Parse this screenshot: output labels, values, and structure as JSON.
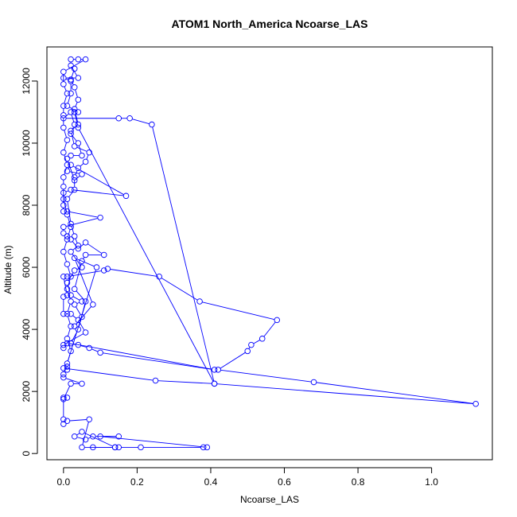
{
  "chart_data": {
    "type": "line",
    "title": "ATOM1 North_America Ncoarse_LAS",
    "xlabel": "Ncoarse_LAS",
    "ylabel": "Altitude (m)",
    "xlim": [
      -0.045,
      1.165
    ],
    "ylim": [
      -200,
      13100
    ],
    "xticks": [
      0.0,
      0.2,
      0.4,
      0.6,
      0.8,
      1.0
    ],
    "xtick_labels": [
      "0.0",
      "0.2",
      "0.4",
      "0.6",
      "0.8",
      "1.0"
    ],
    "yticks": [
      0,
      2000,
      4000,
      6000,
      8000,
      10000,
      12000
    ],
    "ytick_labels": [
      "0",
      "2000",
      "4000",
      "6000",
      "8000",
      "10000",
      "12000"
    ],
    "grid": false,
    "marker": "open-circle",
    "series": [
      {
        "color": "#0000ff",
        "points": [
          [
            0.08,
            200
          ],
          [
            0.14,
            200
          ],
          [
            0.15,
            200
          ],
          [
            0.21,
            200
          ],
          [
            0.38,
            200
          ],
          [
            0.39,
            200
          ],
          [
            0.1,
            550
          ],
          [
            0.15,
            550
          ],
          [
            0.08,
            550
          ],
          [
            0.06,
            450
          ],
          [
            0.03,
            550
          ],
          [
            0.05,
            700
          ],
          [
            0.14,
            200
          ],
          [
            0.05,
            200
          ],
          [
            0.07,
            1100
          ],
          [
            0.01,
            1050
          ],
          [
            0.0,
            950
          ],
          [
            0.0,
            1100
          ],
          [
            0.0,
            1800
          ],
          [
            0.01,
            1800
          ],
          [
            0.0,
            1750
          ],
          [
            0.02,
            2250
          ],
          [
            0.05,
            2250
          ],
          [
            0.0,
            2450
          ],
          [
            0.0,
            2550
          ],
          [
            0.01,
            2700
          ],
          [
            0.01,
            2800
          ],
          [
            0.0,
            2750
          ],
          [
            0.25,
            2350
          ],
          [
            0.41,
            2250
          ],
          [
            1.12,
            1600
          ],
          [
            0.68,
            2300
          ],
          [
            0.42,
            2700
          ],
          [
            0.5,
            3300
          ],
          [
            0.51,
            3500
          ],
          [
            0.54,
            3700
          ],
          [
            0.58,
            4300
          ],
          [
            0.37,
            4900
          ],
          [
            0.26,
            5700
          ],
          [
            0.12,
            5950
          ],
          [
            0.11,
            5900
          ],
          [
            0.01,
            5700
          ],
          [
            0.0,
            5700
          ],
          [
            0.01,
            5100
          ],
          [
            0.0,
            5050
          ],
          [
            0.0,
            4500
          ],
          [
            0.02,
            4500
          ],
          [
            0.04,
            4300
          ],
          [
            0.06,
            3900
          ],
          [
            0.0,
            3500
          ],
          [
            0.0,
            3400
          ],
          [
            0.01,
            3550
          ],
          [
            0.04,
            3500
          ],
          [
            0.07,
            3400
          ],
          [
            0.1,
            3250
          ],
          [
            0.41,
            2700
          ],
          [
            0.02,
            3550
          ],
          [
            0.04,
            4000
          ],
          [
            0.06,
            4900
          ],
          [
            0.03,
            5300
          ],
          [
            0.05,
            6200
          ],
          [
            0.06,
            6400
          ],
          [
            0.11,
            6400
          ],
          [
            0.06,
            6800
          ],
          [
            0.04,
            6600
          ],
          [
            0.02,
            6900
          ],
          [
            0.01,
            7000
          ],
          [
            0.0,
            7100
          ],
          [
            0.0,
            7300
          ],
          [
            0.1,
            7600
          ],
          [
            0.01,
            7800
          ],
          [
            0.0,
            7800
          ],
          [
            0.0,
            8000
          ],
          [
            0.0,
            8400
          ],
          [
            0.02,
            8500
          ],
          [
            0.17,
            8300
          ],
          [
            0.02,
            9300
          ],
          [
            0.01,
            9100
          ],
          [
            0.05,
            9000
          ],
          [
            0.03,
            8800
          ],
          [
            0.01,
            9500
          ],
          [
            0.02,
            9600
          ],
          [
            0.05,
            9600
          ],
          [
            0.04,
            10000
          ],
          [
            0.02,
            10300
          ],
          [
            0.03,
            10600
          ],
          [
            0.02,
            11000
          ],
          [
            0.0,
            10800
          ],
          [
            0.15,
            10800
          ],
          [
            0.18,
            10800
          ],
          [
            0.24,
            10600
          ],
          [
            0.41,
            2250
          ],
          [
            0.04,
            10500
          ],
          [
            0.03,
            11000
          ],
          [
            0.04,
            11000
          ],
          [
            0.01,
            11200
          ],
          [
            0.02,
            11600
          ],
          [
            0.02,
            12000
          ],
          [
            0.0,
            12100
          ],
          [
            0.04,
            12100
          ],
          [
            0.02,
            12500
          ],
          [
            0.02,
            12700
          ],
          [
            0.04,
            12700
          ],
          [
            0.06,
            12700
          ],
          [
            0.0,
            12300
          ],
          [
            0.0,
            11900
          ],
          [
            0.01,
            11600
          ],
          [
            0.0,
            11200
          ],
          [
            0.0,
            10900
          ],
          [
            0.0,
            10500
          ],
          [
            0.01,
            10100
          ],
          [
            0.0,
            9700
          ],
          [
            0.01,
            9300
          ],
          [
            0.0,
            8900
          ],
          [
            0.0,
            8600
          ],
          [
            0.0,
            8200
          ],
          [
            0.01,
            7700
          ],
          [
            0.02,
            7300
          ],
          [
            0.01,
            6900
          ],
          [
            0.0,
            6500
          ],
          [
            0.01,
            6100
          ],
          [
            0.02,
            5700
          ],
          [
            0.01,
            5300
          ],
          [
            0.02,
            4900
          ],
          [
            0.01,
            4500
          ],
          [
            0.02,
            4100
          ],
          [
            0.01,
            3700
          ],
          [
            0.02,
            3300
          ],
          [
            0.01,
            2900
          ],
          [
            0.09,
            6000
          ],
          [
            0.03,
            6300
          ],
          [
            0.08,
            4800
          ],
          [
            0.03,
            4100
          ],
          [
            0.05,
            4400
          ],
          [
            0.03,
            4800
          ],
          [
            0.05,
            4900
          ],
          [
            0.02,
            5100
          ],
          [
            0.01,
            5500
          ],
          [
            0.03,
            5900
          ],
          [
            0.05,
            6000
          ],
          [
            0.02,
            6500
          ],
          [
            0.04,
            6700
          ],
          [
            0.03,
            7000
          ],
          [
            0.02,
            7400
          ],
          [
            0.01,
            8200
          ],
          [
            0.03,
            8500
          ],
          [
            0.03,
            8900
          ],
          [
            0.04,
            9200
          ],
          [
            0.06,
            9400
          ],
          [
            0.07,
            9700
          ],
          [
            0.03,
            9900
          ],
          [
            0.02,
            10400
          ],
          [
            0.04,
            10600
          ],
          [
            0.03,
            11100
          ],
          [
            0.04,
            11400
          ],
          [
            0.03,
            11800
          ],
          [
            0.02,
            12050
          ],
          [
            0.03,
            12400
          ]
        ]
      }
    ]
  }
}
